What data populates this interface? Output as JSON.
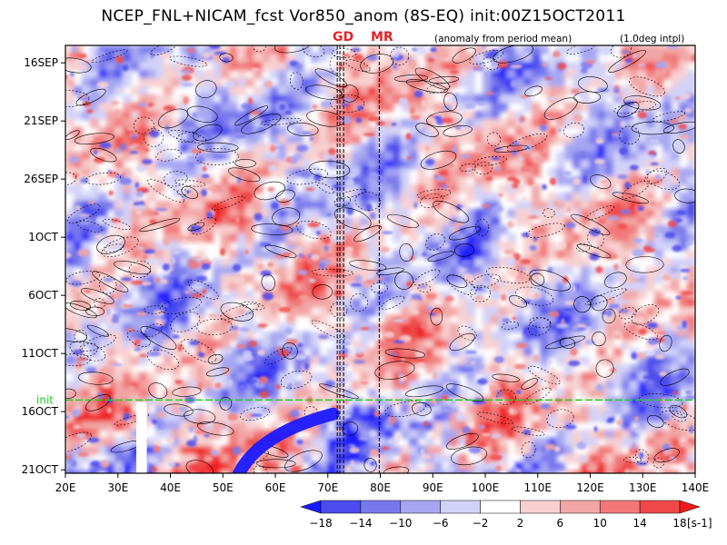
{
  "chart_data": {
    "type": "heatmap",
    "title": "NCEP_FNL+NICAM_fcst Vor850_anom (8S-EQ) init:00Z15OCT2011",
    "subtitle_left": "(anomaly from period mean)",
    "subtitle_right": "(1.0deg intpl)",
    "x_ticks": [
      "20E",
      "30E",
      "40E",
      "50E",
      "60E",
      "70E",
      "80E",
      "90E",
      "100E",
      "110E",
      "120E",
      "130E",
      "140E"
    ],
    "x_tick_values": [
      20,
      30,
      40,
      50,
      60,
      70,
      80,
      90,
      100,
      110,
      120,
      130,
      140
    ],
    "xlim": [
      20,
      140
    ],
    "y_ticks": [
      "16SEP",
      "21SEP",
      "26SEP",
      "1OCT",
      "6OCT",
      "11OCT",
      "16OCT",
      "21OCT"
    ],
    "y_tick_days": [
      0,
      5,
      10,
      15,
      20,
      25,
      30,
      35
    ],
    "ylim_days": [
      -1.5,
      35.3
    ],
    "init_label": "init",
    "init_day": 29.0,
    "region_labels": [
      {
        "text": "GD",
        "lon": 73
      },
      {
        "text": "MR",
        "lon": 80
      }
    ],
    "region_lines_lon": [
      71.8,
      72.3,
      73.0,
      79.8
    ],
    "missing_band_lon": [
      33.5,
      35.5
    ],
    "missing_band_days": [
      29.0,
      35.3
    ],
    "legend": {
      "tick_labels": [
        "−18",
        "−14",
        "−10",
        "−6",
        "−2",
        "2",
        "6",
        "10",
        "14",
        "18"
      ],
      "unit": "[s-1]",
      "colors": [
        "#1a1aff",
        "#4b4bee",
        "#7878ee",
        "#a6a6f2",
        "#d2d2f8",
        "#ffffff",
        "#f8d0d0",
        "#f2a6a6",
        "#f27878",
        "#f04848",
        "#f01a1a"
      ]
    },
    "colors": {
      "init_line": "#22cc22",
      "region_label": "#e0242a"
    }
  }
}
